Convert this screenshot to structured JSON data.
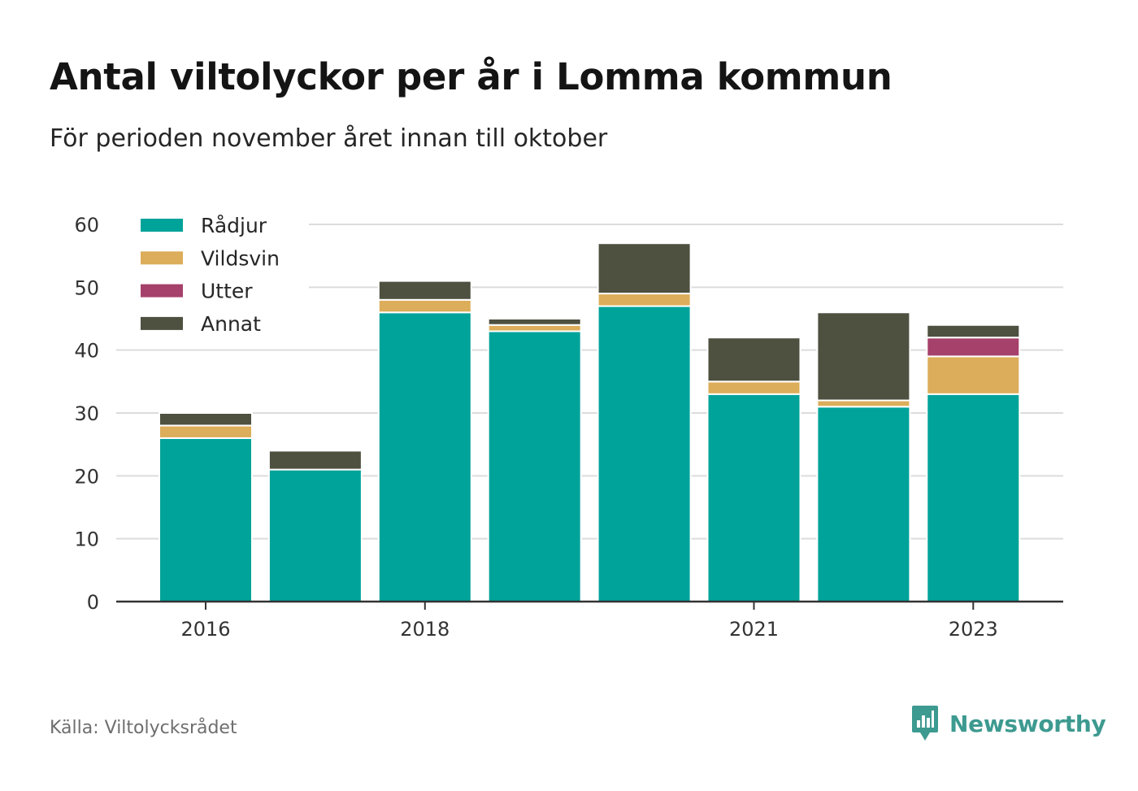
{
  "header": {
    "title": "Antal viltolyckor per år i Lomma kommun",
    "subtitle": "För perioden november året innan till oktober"
  },
  "footer": {
    "source": "Källa: Viltolycksrådet",
    "brand": "Newsworthy",
    "brand_color": "#3d9a90"
  },
  "chart_data": {
    "type": "bar",
    "stacked": true,
    "x": [
      2016,
      2017,
      2018,
      2019,
      2020,
      2021,
      2022,
      2023
    ],
    "xtick_labels": [
      "2016",
      "2018",
      "2021",
      "2023"
    ],
    "xtick_values": [
      2016,
      2018,
      2021,
      2023
    ],
    "ylim": [
      0,
      60
    ],
    "yticks": [
      0,
      10,
      20,
      30,
      40,
      50,
      60
    ],
    "grid": true,
    "legend_position": "top-left",
    "series": [
      {
        "name": "Rådjur",
        "color": "#00a39a",
        "values": [
          26,
          21,
          46,
          43,
          47,
          33,
          31,
          33
        ]
      },
      {
        "name": "Vildsvin",
        "color": "#dcad5a",
        "values": [
          2,
          0,
          2,
          1,
          2,
          2,
          1,
          6
        ]
      },
      {
        "name": "Utter",
        "color": "#a6416b",
        "values": [
          0,
          0,
          0,
          0,
          0,
          0,
          0,
          3
        ]
      },
      {
        "name": "Annat",
        "color": "#4e5040",
        "values": [
          2,
          3,
          3,
          1,
          8,
          7,
          14,
          2
        ]
      }
    ]
  }
}
